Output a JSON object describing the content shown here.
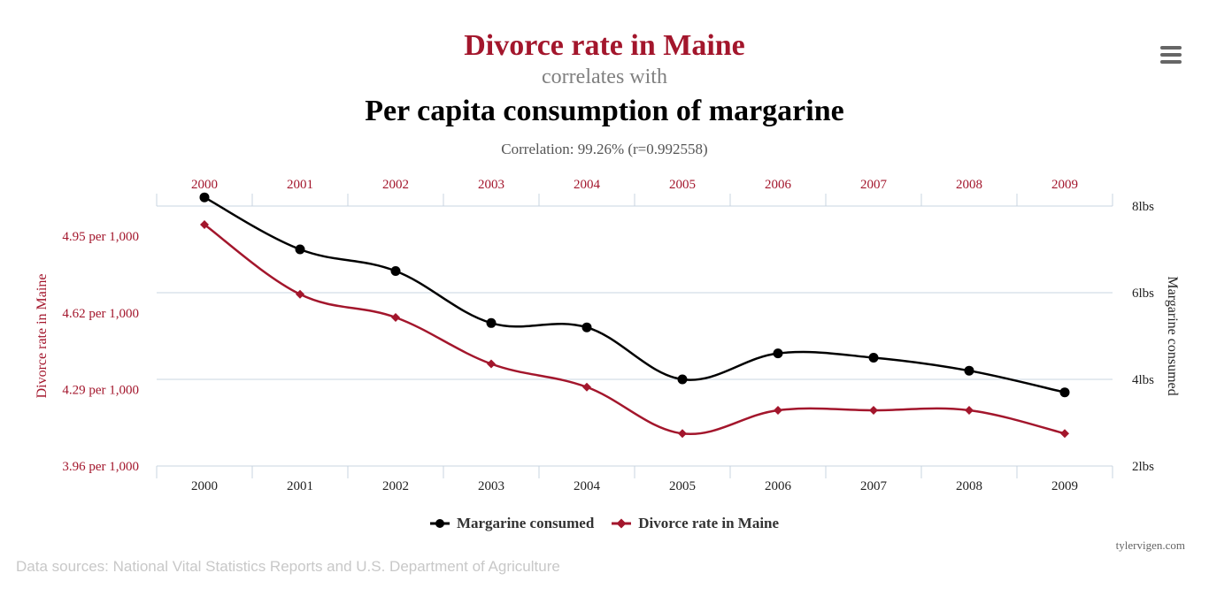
{
  "header": {
    "title_main": "Divorce rate in Maine",
    "title_connector": "correlates with",
    "title_second": "Per capita consumption of margarine",
    "correlation": "Correlation: 99.26% (r=0.992558)"
  },
  "footer": {
    "credit": "tylervigen.com",
    "sources": "Data sources: National Vital Statistics Reports and U.S. Department of Agriculture"
  },
  "menu": {
    "icon": "hamburger-menu-icon"
  },
  "colors": {
    "divorce": "#a3162c",
    "margarine": "#000000",
    "grid": "#c9d4e0",
    "title_main": "#a3162c"
  },
  "chart_data": {
    "type": "line",
    "categories": [
      "2000",
      "2001",
      "2002",
      "2003",
      "2004",
      "2005",
      "2006",
      "2007",
      "2008",
      "2009"
    ],
    "left_axis": {
      "label": "Divorce rate in Maine",
      "ticks": [
        "4.95 per 1,000",
        "4.62 per 1,000",
        "4.29 per 1,000",
        "3.96 per 1,000"
      ],
      "tick_values": [
        4.95,
        4.62,
        4.29,
        3.96
      ],
      "range": [
        3.96,
        5.08
      ]
    },
    "right_axis": {
      "label": "Margarine consumed",
      "ticks": [
        "8lbs",
        "6lbs",
        "4lbs",
        "2lbs"
      ],
      "tick_values": [
        8,
        6,
        4,
        2
      ],
      "range": [
        2,
        8
      ]
    },
    "series": [
      {
        "name": "Margarine consumed",
        "axis": "right",
        "color": "#000000",
        "marker": "circle",
        "values": [
          8.2,
          7.0,
          6.5,
          5.3,
          5.2,
          4.0,
          4.6,
          4.5,
          4.2,
          3.7
        ]
      },
      {
        "name": "Divorce rate in Maine",
        "axis": "left",
        "color": "#a3162c",
        "marker": "diamond",
        "values": [
          5.0,
          4.7,
          4.6,
          4.4,
          4.3,
          4.1,
          4.2,
          4.2,
          4.2,
          4.1
        ]
      }
    ],
    "grid": true,
    "legend_position": "bottom"
  }
}
